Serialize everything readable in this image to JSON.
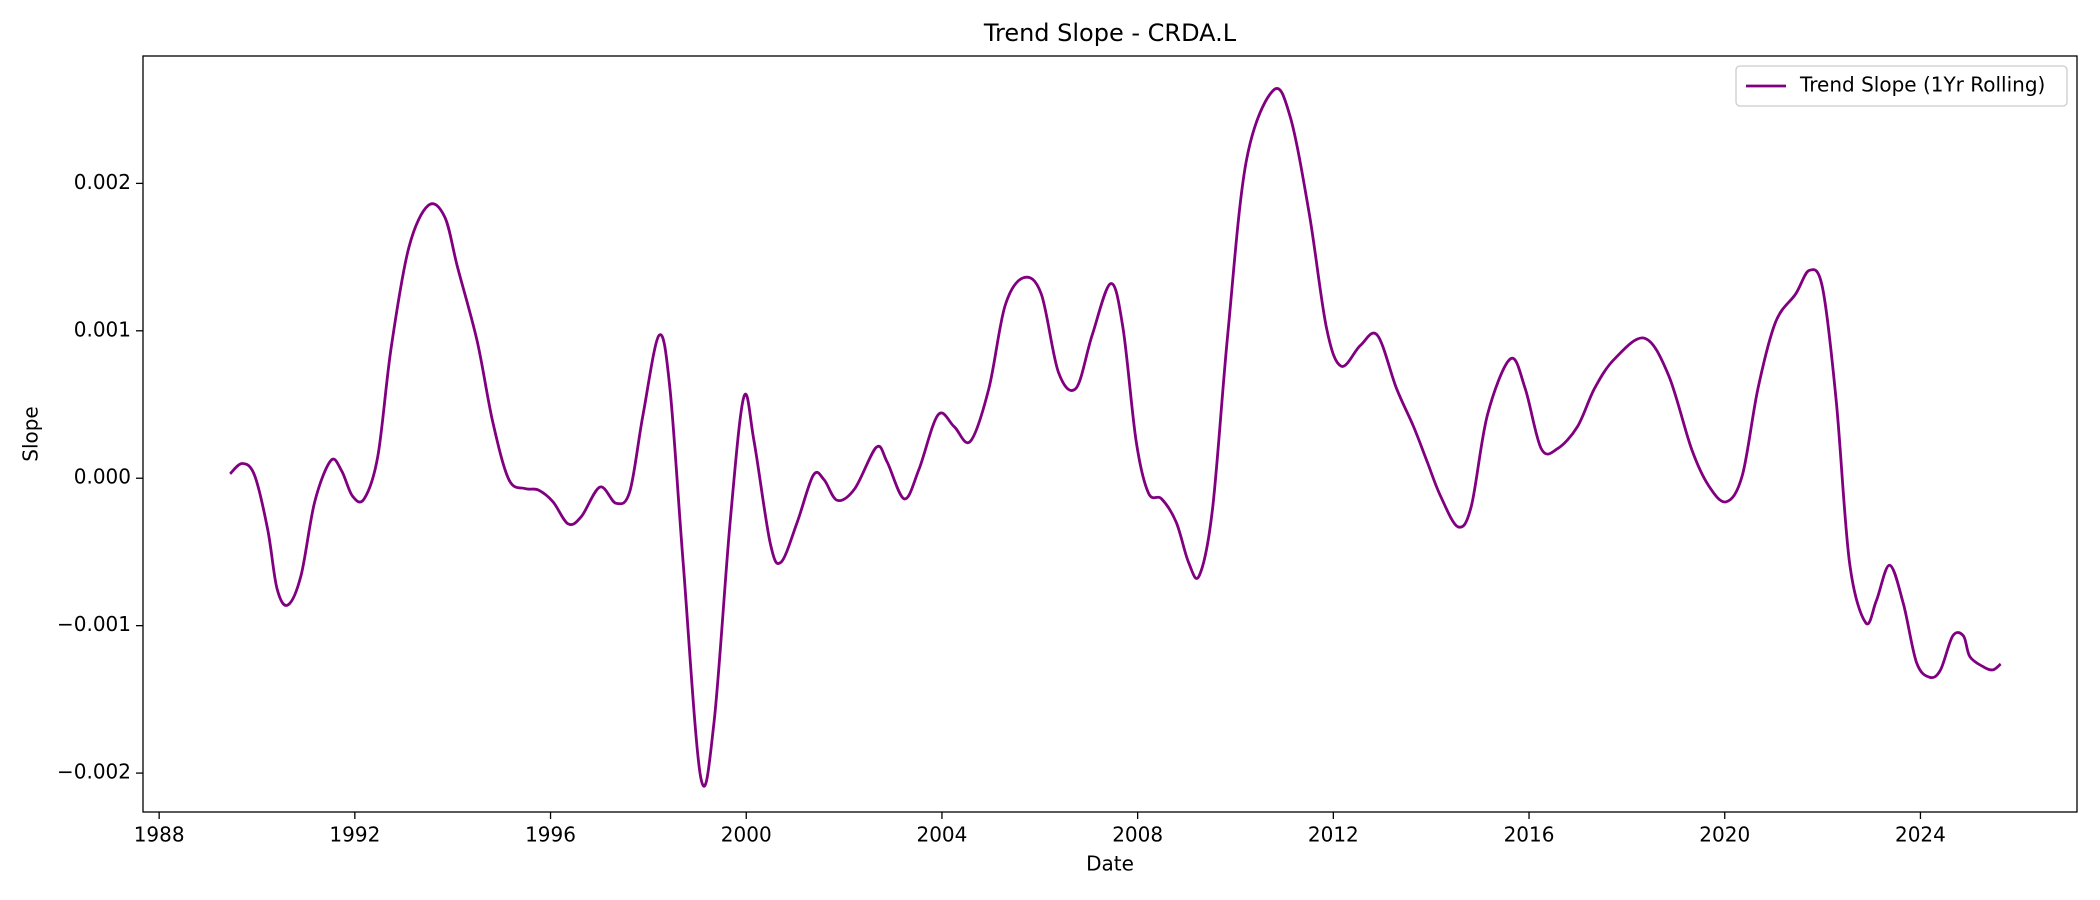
{
  "chart_data": {
    "type": "line",
    "title": "Trend Slope - CRDA.L",
    "xlabel": "Date",
    "ylabel": "Slope",
    "xlim": [
      1987.67,
      2027.2
    ],
    "xticks": [
      1988,
      1992,
      1996,
      2000,
      2004,
      2008,
      2012,
      2016,
      2020,
      2024
    ],
    "ylim": [
      -0.002264,
      0.002864
    ],
    "yticks": [
      {
        "value": -0.002,
        "label": "−0.002"
      },
      {
        "value": -0.001,
        "label": "−0.001"
      },
      {
        "value": 0,
        "label": "0.000"
      },
      {
        "value": 0.001,
        "label": "0.001"
      },
      {
        "value": 0.002,
        "label": "0.002"
      }
    ],
    "grid": false,
    "legend": "upper right",
    "x": [
      1989.45,
      1989.7,
      1989.95,
      1990.22,
      1990.41,
      1990.63,
      1990.9,
      1991.18,
      1991.51,
      1991.73,
      1991.95,
      1992.19,
      1992.47,
      1992.74,
      1993.1,
      1993.5,
      1993.84,
      1994.1,
      1994.5,
      1994.82,
      1995.15,
      1995.48,
      1995.75,
      1996.05,
      1996.36,
      1996.63,
      1997.01,
      1997.34,
      1997.62,
      1997.89,
      1998.22,
      1998.44,
      1998.71,
      1999.07,
      1999.34,
      1999.67,
      1999.95,
      2000.16,
      2000.49,
      2000.71,
      2001.04,
      2001.37,
      2001.59,
      2001.86,
      2002.22,
      2002.66,
      2002.88,
      2003.23,
      2003.53,
      2003.92,
      2004.25,
      2004.58,
      2004.96,
      2005.29,
      2005.67,
      2006.03,
      2006.38,
      2006.74,
      2007.07,
      2007.45,
      2007.7,
      2007.97,
      2008.22,
      2008.49,
      2008.79,
      2009.04,
      2009.26,
      2009.53,
      2009.84,
      2010.22,
      2010.77,
      2011.12,
      2011.51,
      2011.86,
      2012.16,
      2012.55,
      2012.9,
      2013.29,
      2013.64,
      2013.92,
      2014.19,
      2014.55,
      2014.82,
      2015.15,
      2015.62,
      2015.92,
      2016.25,
      2016.58,
      2016.99,
      2017.34,
      2017.75,
      2018.36,
      2018.85,
      2019.32,
      2019.67,
      2020.03,
      2020.36,
      2020.68,
      2021.04,
      2021.45,
      2021.73,
      2022.0,
      2022.28,
      2022.55,
      2022.88,
      2023.1,
      2023.37,
      2023.65,
      2023.92,
      2024.19,
      2024.41,
      2024.66,
      2024.88,
      2025.01,
      2025.29,
      2025.48,
      2025.64
    ],
    "series": [
      {
        "name": "Trend Slope (1Yr Rolling)",
        "color": "#800080",
        "values": [
          3e-05,
          0.0001,
          2e-05,
          -0.00035,
          -0.00075,
          -0.00086,
          -0.00066,
          -0.00016,
          0.00012,
          5e-05,
          -0.00012,
          -0.00014,
          0.00015,
          0.00088,
          0.00156,
          0.00185,
          0.00177,
          0.00143,
          0.00093,
          0.00038,
          -1e-05,
          -7e-05,
          -8e-05,
          -0.00016,
          -0.00031,
          -0.00026,
          -6e-05,
          -0.00017,
          -9e-05,
          0.00043,
          0.00097,
          0.00061,
          -0.00057,
          -0.00203,
          -0.00166,
          -0.0003,
          0.00055,
          0.00025,
          -0.00044,
          -0.00057,
          -0.0003,
          2e-05,
          -1e-05,
          -0.00015,
          -7e-05,
          0.00021,
          0.00011,
          -0.00014,
          6e-05,
          0.00043,
          0.00035,
          0.00025,
          0.00061,
          0.00117,
          0.00136,
          0.00125,
          0.00072,
          0.00061,
          0.00097,
          0.00132,
          0.00102,
          0.00025,
          -0.0001,
          -0.00014,
          -0.0003,
          -0.00057,
          -0.00066,
          -0.00021,
          0.00097,
          0.00215,
          0.00263,
          0.00245,
          0.00179,
          0.00102,
          0.00076,
          0.0009,
          0.00097,
          0.00061,
          0.00035,
          0.00011,
          -0.00012,
          -0.00033,
          -0.00019,
          0.00043,
          0.00081,
          0.00061,
          0.0002,
          0.0002,
          0.00035,
          0.00061,
          0.00081,
          0.00095,
          0.0007,
          0.0002,
          -5e-05,
          -0.00016,
          2e-05,
          0.00061,
          0.00106,
          0.00125,
          0.00141,
          0.00129,
          0.00052,
          -0.00057,
          -0.00098,
          -0.00083,
          -0.00059,
          -0.00085,
          -0.00125,
          -0.00135,
          -0.0013,
          -0.00107,
          -0.00107,
          -0.00121,
          -0.00128,
          -0.0013,
          -0.00126
        ]
      }
    ]
  }
}
